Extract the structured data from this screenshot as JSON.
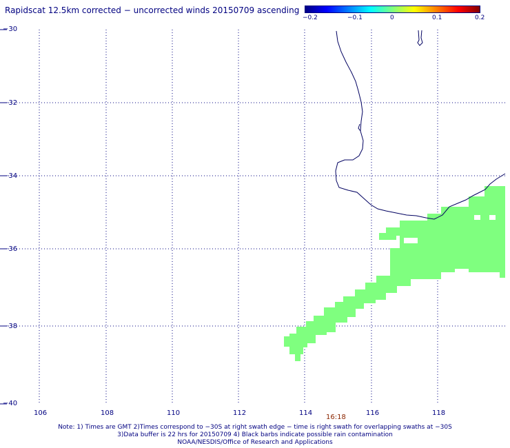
{
  "title": "Rapidscat 12.5km corrected − uncorrected winds 20150709 ascending",
  "colorbar": {
    "ticks": [
      "−0.2",
      "−0.1",
      "0",
      "0.1",
      "0.2"
    ],
    "colors": [
      "#00007f",
      "#0000ff",
      "#007fff",
      "#00ffff",
      "#7fff7f",
      "#ffff00",
      "#ff7f00",
      "#ff0000",
      "#7f0000"
    ]
  },
  "map": {
    "lon_range": [
      105,
      120
    ],
    "lat_range": [
      -40,
      -30
    ],
    "lon_labels": [
      "106",
      "108",
      "110",
      "112",
      "114",
      "116",
      "118"
    ],
    "lat_labels": [
      "−30",
      "−32",
      "−34",
      "−36",
      "−38",
      "−40"
    ],
    "coast_color": "#000060",
    "swath_color": "#7fff7f",
    "swath_value": 0
  },
  "time_label": "16:18",
  "notes": [
    "Note: 1) Times are GMT 2)Times correspond to −30S at right swath edge − time is right swath for overlapping swaths at −30S",
    "3)Data buffer is 22 hrs for 20150709 4) Black barbs indicate possible rain contamination",
    "NOAA/NESDIS/Office of Research and Applications"
  ]
}
